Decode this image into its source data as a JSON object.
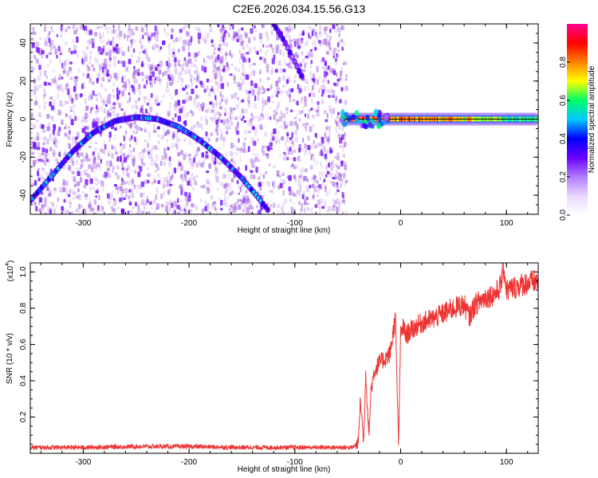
{
  "title": "C2E6.2026.034.15.56.G13",
  "colors": {
    "background": "#ffffff",
    "axis": "#000000",
    "snr_line": "#ee3333",
    "spectrogram_noise": "#9a55e0",
    "colormap": [
      "#ffffff",
      "#e8d8ff",
      "#b07bff",
      "#6a00ff",
      "#0000ff",
      "#00c8ff",
      "#00ff66",
      "#ffff00",
      "#ff8000",
      "#ff0000",
      "#ff0090"
    ]
  },
  "chart_data": [
    {
      "type": "heatmap",
      "xlabel": "Height of straight line (km)",
      "ylabel": "Frequency (Hz)",
      "xlim": [
        -350,
        130
      ],
      "ylim": [
        -50,
        50
      ],
      "x_ticks": [
        "-300",
        "-200",
        "-100",
        "0",
        "100"
      ],
      "x_tick_values": [
        -300,
        -200,
        -100,
        0,
        100
      ],
      "y_ticks": [
        "-40",
        "-20",
        "0",
        "20",
        "40"
      ],
      "y_tick_values": [
        -40,
        -20,
        0,
        20,
        40
      ],
      "noise_region_x": [
        -350,
        -52
      ],
      "arc_trace": {
        "x": [
          -350,
          -330,
          -310,
          -290,
          -270,
          -250,
          -230,
          -210,
          -190,
          -170,
          -150,
          -135,
          -125
        ],
        "y": [
          -43,
          -30,
          -17,
          -7,
          -1,
          1,
          0,
          -4,
          -11,
          -20,
          -31,
          -41,
          -48
        ]
      },
      "upper_trace": {
        "x": [
          -120,
          -110,
          -100,
          -92
        ],
        "y": [
          50,
          41,
          30,
          21
        ]
      },
      "carrier": {
        "x": [
          -57,
          -40,
          -20,
          0,
          20,
          40,
          60,
          80,
          100,
          130
        ],
        "y": [
          0,
          0,
          0,
          0,
          0,
          0,
          0,
          0,
          0,
          0
        ],
        "amplitude": [
          0.7,
          0.9,
          0.95,
          0.9,
          0.85,
          0.85,
          0.8,
          0.75,
          0.7,
          0.65
        ]
      },
      "colorbar": {
        "label": "Normalized spectral amplitude",
        "range": [
          0.0,
          1.0
        ],
        "ticks": [
          "0.0",
          "0.2",
          "0.4",
          "0.6",
          "0.8"
        ],
        "tick_values": [
          0.0,
          0.2,
          0.4,
          0.6,
          0.8
        ]
      }
    },
    {
      "type": "line",
      "xlabel": "Height of straight line (km)",
      "ylabel": "SNR (10 * v/v)",
      "multiplier_label": "(x10",
      "multiplier_exp": "4",
      "multiplier_close": ")",
      "xlim": [
        -350,
        130
      ],
      "ylim": [
        0.0,
        1.05
      ],
      "x_ticks": [
        "-300",
        "-200",
        "-100",
        "0",
        "100"
      ],
      "x_tick_values": [
        -300,
        -200,
        -100,
        0,
        100
      ],
      "y_ticks": [
        "0.2",
        "0.4",
        "0.6",
        "0.8",
        "1.0"
      ],
      "y_tick_values": [
        0.2,
        0.4,
        0.6,
        0.8,
        1.0
      ],
      "series": [
        {
          "x": [
            -350,
            -300,
            -250,
            -200,
            -150,
            -100,
            -60,
            -45,
            -40,
            -38,
            -35,
            -33,
            -30,
            -28,
            -25,
            -20,
            -15,
            -10,
            -5,
            -2,
            0,
            2,
            5,
            10,
            20,
            30,
            40,
            50,
            60,
            65,
            70,
            80,
            90,
            95,
            97,
            100,
            110,
            120,
            130
          ],
          "y": [
            0.03,
            0.03,
            0.035,
            0.035,
            0.03,
            0.03,
            0.03,
            0.03,
            0.06,
            0.3,
            0.06,
            0.45,
            0.1,
            0.35,
            0.45,
            0.5,
            0.52,
            0.55,
            0.75,
            0.05,
            0.65,
            0.7,
            0.65,
            0.68,
            0.72,
            0.74,
            0.77,
            0.8,
            0.82,
            0.75,
            0.82,
            0.86,
            0.88,
            0.93,
            1.05,
            0.9,
            0.92,
            0.94,
            0.95
          ]
        }
      ]
    }
  ]
}
